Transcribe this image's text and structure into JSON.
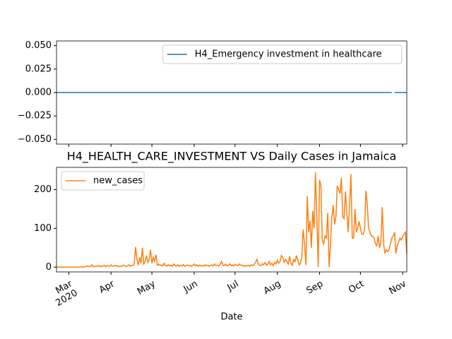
{
  "chart_data": [
    {
      "type": "line",
      "legend": "upper right",
      "xlim": [
        -9,
        248
      ],
      "ylim": [
        -0.055,
        0.055
      ],
      "yticks": [
        {
          "value": -0.05,
          "label": "−0.050"
        },
        {
          "value": -0.025,
          "label": "−0.025"
        },
        {
          "value": 0,
          "label": "0.000"
        },
        {
          "value": 0.025,
          "label": "0.025"
        },
        {
          "value": 0.05,
          "label": "0.050"
        }
      ],
      "series": [
        {
          "name": "H4_Emergency investment in healthcare",
          "color": "#1f77b4",
          "x": [
            -9,
            237,
            238,
            239,
            248
          ],
          "values": [
            0,
            0,
            null,
            0,
            0
          ]
        }
      ]
    },
    {
      "type": "line",
      "title": "H4_HEALTH_CARE_INVESTMENT VS Daily Cases in Jamaica",
      "x_label": "Date",
      "legend": "upper left",
      "year_label": "2020",
      "xlim": [
        -9,
        248
      ],
      "ylim": [
        -12.25,
        257.25
      ],
      "xticks": [
        {
          "value": 0,
          "label": "Mar"
        },
        {
          "value": 31,
          "label": "Apr"
        },
        {
          "value": 61,
          "label": "May"
        },
        {
          "value": 92,
          "label": "Jun"
        },
        {
          "value": 122,
          "label": "Jul"
        },
        {
          "value": 153,
          "label": "Aug"
        },
        {
          "value": 184,
          "label": "Sep"
        },
        {
          "value": 214,
          "label": "Oct"
        },
        {
          "value": 245,
          "label": "Nov"
        }
      ],
      "yticks": [
        0,
        100,
        200
      ],
      "series": [
        {
          "name": "new_cases",
          "color": "#ff7f0e",
          "x": [
            -9,
            -8,
            -7,
            -6,
            -5,
            -4,
            -3,
            -2,
            -1,
            0,
            1,
            2,
            3,
            4,
            5,
            6,
            7,
            8,
            9,
            10,
            11,
            12,
            13,
            14,
            15,
            16,
            17,
            18,
            19,
            20,
            21,
            22,
            23,
            24,
            25,
            26,
            27,
            28,
            29,
            30,
            31,
            32,
            33,
            34,
            35,
            36,
            37,
            38,
            39,
            40,
            41,
            42,
            43,
            44,
            45,
            46,
            47,
            48,
            49,
            50,
            51,
            52,
            53,
            54,
            55,
            56,
            57,
            58,
            59,
            60,
            61,
            62,
            63,
            64,
            65,
            66,
            67,
            68,
            69,
            70,
            71,
            72,
            73,
            74,
            75,
            76,
            77,
            78,
            79,
            80,
            81,
            82,
            83,
            84,
            85,
            86,
            87,
            88,
            89,
            90,
            91,
            92,
            93,
            94,
            95,
            96,
            97,
            98,
            99,
            100,
            101,
            102,
            103,
            104,
            105,
            106,
            107,
            108,
            109,
            110,
            111,
            112,
            113,
            114,
            115,
            116,
            117,
            118,
            119,
            120,
            121,
            122,
            123,
            124,
            125,
            126,
            127,
            128,
            129,
            130,
            131,
            132,
            133,
            134,
            135,
            136,
            137,
            138,
            139,
            140,
            141,
            142,
            143,
            144,
            145,
            146,
            147,
            148,
            149,
            150,
            151,
            152,
            153,
            154,
            155,
            156,
            157,
            158,
            159,
            160,
            161,
            162,
            163,
            164,
            165,
            166,
            167,
            168,
            169,
            170,
            171,
            172,
            173,
            174,
            175,
            176,
            177,
            178,
            179,
            180,
            181,
            182,
            183,
            184,
            185,
            186,
            187,
            188,
            189,
            190,
            191,
            192,
            193,
            194,
            195,
            196,
            197,
            198,
            199,
            200,
            201,
            202,
            203,
            204,
            205,
            206,
            207,
            208,
            209,
            210,
            211,
            212,
            213,
            214,
            215,
            216,
            217,
            218,
            219,
            220,
            221,
            222,
            223,
            224,
            225,
            226,
            227,
            228,
            229,
            230,
            231,
            232,
            233,
            234,
            235,
            236,
            237,
            238,
            239,
            240,
            241,
            242,
            243,
            244,
            245,
            246,
            247,
            248
          ],
          "values": [
            0,
            0,
            0,
            0,
            0,
            0,
            0,
            0,
            0,
            0,
            0,
            0,
            0,
            0,
            0,
            0,
            0,
            0,
            0,
            1,
            0,
            1,
            2,
            3,
            1,
            2,
            6,
            1,
            2,
            3,
            2,
            4,
            1,
            3,
            2,
            5,
            1,
            4,
            3,
            2,
            6,
            2,
            3,
            5,
            2,
            4,
            1,
            3,
            2,
            5,
            4,
            2,
            3,
            6,
            2,
            5,
            4,
            8,
            52,
            20,
            5,
            25,
            10,
            50,
            8,
            15,
            30,
            12,
            20,
            45,
            10,
            25,
            15,
            32,
            5,
            8,
            4,
            6,
            3,
            10,
            4,
            2,
            6,
            3,
            5,
            2,
            8,
            4,
            3,
            6,
            2,
            5,
            3,
            7,
            2,
            4,
            6,
            3,
            5,
            2,
            4,
            8,
            3,
            6,
            2,
            5,
            3,
            4,
            2,
            6,
            3,
            5,
            2,
            4,
            6,
            3,
            8,
            4,
            5,
            3,
            7,
            15,
            6,
            4,
            8,
            3,
            5,
            9,
            4,
            6,
            3,
            7,
            5,
            4,
            8,
            6,
            3,
            5,
            2,
            4,
            3,
            5,
            2,
            6,
            4,
            7,
            12,
            20,
            8,
            5,
            4,
            9,
            6,
            12,
            5,
            8,
            15,
            6,
            10,
            4,
            12,
            8,
            18,
            10,
            14,
            30,
            25,
            12,
            20,
            15,
            8,
            28,
            10,
            5,
            20,
            14,
            30,
            18,
            6,
            10,
            30,
            97,
            60,
            5,
            183,
            90,
            120,
            50,
            145,
            100,
            245,
            130,
            0,
            225,
            210,
            70,
            60,
            80,
            75,
            140,
            0,
            60,
            130,
            160,
            110,
            130,
            210,
            200,
            190,
            230,
            130,
            125,
            195,
            140,
            90,
            160,
            240,
            75,
            75,
            150,
            90,
            100,
            118,
            100,
            85,
            85,
            95,
            197,
            160,
            100,
            90,
            80,
            80,
            75,
            60,
            55,
            80,
            50,
            65,
            155,
            60,
            35,
            45,
            40,
            45,
            60,
            75,
            80,
            90,
            35,
            55,
            65,
            75,
            70,
            80,
            85,
            90,
            35
          ]
        }
      ]
    }
  ]
}
